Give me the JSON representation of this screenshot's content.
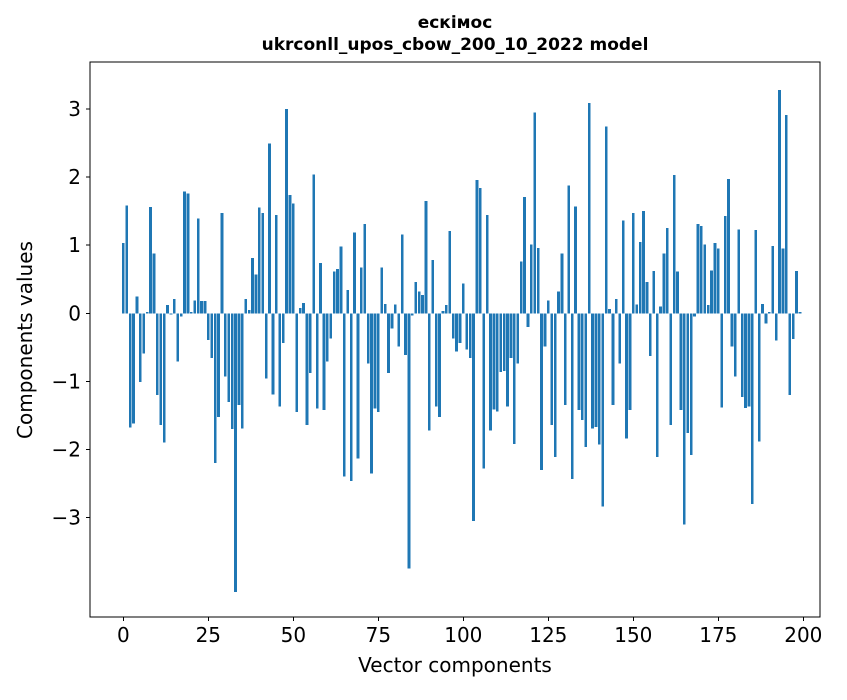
{
  "chart_data": {
    "type": "bar",
    "title_line1": "ескімос",
    "title_line2": "ukrconll_upos_cbow_200_10_2022 model",
    "xlabel": "Vector components",
    "ylabel": "Components values",
    "x_tick_values": [
      0,
      25,
      50,
      75,
      100,
      125,
      150,
      175,
      200
    ],
    "x_tick_labels": [
      "0",
      "25",
      "50",
      "75",
      "100",
      "125",
      "150",
      "175",
      "200"
    ],
    "y_tick_values": [
      3,
      2,
      1,
      0,
      -1,
      -2,
      -3
    ],
    "y_tick_labels": [
      "3",
      "2",
      "1",
      "0",
      "−1",
      "−2",
      "−3"
    ],
    "xlim": [
      -9.8,
      204.9
    ],
    "ylim": [
      -4.46,
      3.69
    ],
    "bar_color": "#1f77b4",
    "bar_width": 0.8,
    "n_components": 200,
    "grid": false,
    "legend": "none",
    "values": [
      1.03,
      1.58,
      -1.68,
      -1.62,
      0.25,
      -1.01,
      -0.59,
      0.02,
      1.56,
      0.88,
      -1.2,
      -1.64,
      -1.9,
      0.12,
      -0.02,
      0.21,
      -0.71,
      -0.05,
      1.79,
      1.76,
      0.02,
      0.19,
      1.39,
      0.18,
      0.18,
      -0.39,
      -0.66,
      -2.2,
      -1.52,
      1.47,
      -0.93,
      -1.3,
      -1.7,
      -4.09,
      -1.35,
      -1.69,
      0.21,
      0.05,
      0.81,
      0.57,
      1.55,
      1.47,
      -0.96,
      2.49,
      -1.19,
      1.44,
      -1.37,
      -0.44,
      3.0,
      1.74,
      1.61,
      -1.45,
      0.08,
      0.15,
      -1.64,
      -0.88,
      2.04,
      -1.4,
      0.74,
      -1.42,
      -0.71,
      -0.37,
      0.61,
      0.65,
      0.98,
      -2.4,
      0.34,
      -2.46,
      1.19,
      -2.13,
      0.67,
      1.31,
      -0.74,
      -2.35,
      -1.4,
      -1.45,
      0.67,
      0.14,
      -0.88,
      -0.22,
      0.13,
      -0.49,
      1.16,
      -0.61,
      -3.75,
      -0.03,
      0.46,
      0.32,
      0.27,
      1.65,
      -1.72,
      0.78,
      -1.37,
      -1.52,
      0.03,
      0.12,
      1.21,
      -0.37,
      -0.56,
      -0.44,
      0.44,
      -0.53,
      -0.66,
      -3.05,
      1.96,
      1.84,
      -2.28,
      1.44,
      -1.72,
      -1.41,
      -1.44,
      -0.86,
      -0.85,
      -1.37,
      -0.66,
      -1.92,
      -0.74,
      0.76,
      1.71,
      -0.2,
      1.01,
      2.95,
      0.96,
      -2.3,
      -0.49,
      0.19,
      -1.64,
      -2.11,
      0.32,
      0.88,
      -1.35,
      1.88,
      -2.43,
      1.57,
      -1.42,
      -1.57,
      -1.96,
      3.09,
      -1.69,
      -1.67,
      -1.93,
      -2.84,
      2.74,
      0.06,
      -1.35,
      0.21,
      -0.74,
      1.36,
      -1.84,
      -1.42,
      1.47,
      0.13,
      1.05,
      1.5,
      0.46,
      -0.63,
      0.62,
      -2.11,
      0.1,
      0.88,
      1.25,
      -1.64,
      2.03,
      0.61,
      -1.42,
      -3.1,
      -1.76,
      -2.08,
      -0.05,
      1.31,
      1.28,
      1.01,
      0.12,
      0.63,
      1.03,
      0.95,
      -1.38,
      1.43,
      1.97,
      -0.49,
      -0.93,
      1.23,
      -1.23,
      -1.39,
      -1.37,
      -2.8,
      1.22,
      -1.88,
      0.14,
      -0.15,
      0.02,
      0.99,
      -0.4,
      3.28,
      0.95,
      2.91,
      -1.2,
      -0.38,
      0.62,
      0.02
    ]
  }
}
